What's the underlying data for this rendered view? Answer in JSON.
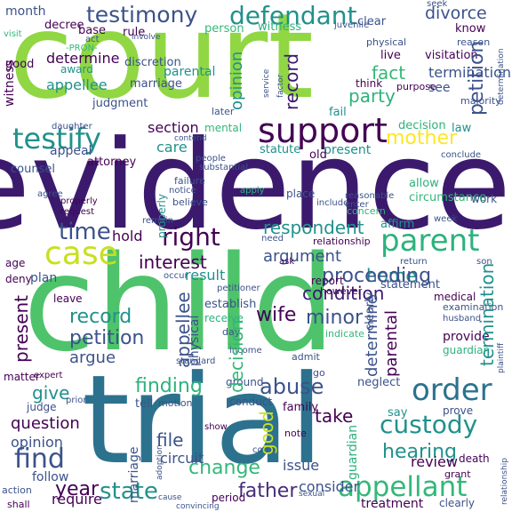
{
  "palette": {
    "background": "#ffffff",
    "dark_purple": "#440154",
    "indigo": "#3b528b",
    "blue": "#31688e",
    "teal": "#21918c",
    "green": "#35b779",
    "lime": "#90d743",
    "yellow": "#fde725"
  },
  "words": [
    "court",
    "evidence",
    "child",
    "trial",
    "support",
    "testify",
    "testimony",
    "defendant",
    "divorce",
    "case",
    "parent",
    "right",
    "time",
    "order",
    "custody",
    "appellant",
    "find",
    "finding",
    "abuse",
    "hearing",
    "father",
    "state",
    "year",
    "mother",
    "respondent",
    "interest",
    "home",
    "wife",
    "minor",
    "fact",
    "party",
    "record",
    "petition",
    "argue",
    "give",
    "question",
    "opinion",
    "file",
    "change",
    "circuit",
    "review",
    "proceeding",
    "condition",
    "argument",
    "result",
    "hold",
    "care",
    "section",
    "appeal",
    "present",
    "law",
    "decision",
    "appellee",
    "determine",
    "parental",
    "termination",
    "see",
    "live",
    "visitation",
    "statement",
    "affirm",
    "allow",
    "circumstance",
    "take",
    "tell",
    "issue",
    "consider",
    "require",
    "follow",
    "say",
    "family",
    "provide",
    "good",
    "month",
    "decree",
    "base",
    "rule",
    "discretion",
    "marriage",
    "judgment",
    "clear",
    "know",
    "physical",
    "witness",
    "person",
    "award",
    "counsel",
    "attorney",
    "mental",
    "statute",
    "old",
    "place",
    "age",
    "deny",
    "leave",
    "plan",
    "establish",
    "receive",
    "report",
    "however",
    "day",
    "admit",
    "neglect",
    "go",
    "prove",
    "ground",
    "matter",
    "expert",
    "judge",
    "prior",
    "motion",
    "conduct",
    "note",
    "grant",
    "period",
    "action",
    "shall",
    "treatment",
    "clearly",
    "medical",
    "examination",
    "husband",
    "guardian",
    "work",
    "death",
    "purpose",
    "fail",
    "later",
    "majority",
    "think",
    "juvenile",
    "reason",
    "seek",
    "visit",
    "daughter",
    "concern",
    "reasonable",
    "enter",
    "notice",
    "believe",
    "apply",
    "include",
    "ask",
    "relationship",
    "need",
    "return",
    "son",
    "week",
    "conclude",
    "contend",
    "occur",
    "petitioner",
    "income",
    "standard",
    "indicate",
    "show",
    "come",
    "sexual",
    "cause",
    "convincing",
    "act",
    "-PRON-",
    "agree",
    "properly",
    "request",
    "failure",
    "people",
    "substantial",
    "remain",
    "involve",
    "injury",
    "when",
    "drug",
    "proof",
    "appear",
    "alleged",
    "allege",
    "plaintiff",
    "adoption",
    "because",
    "consent",
    "continue",
    "factor",
    "service",
    "life",
    "there",
    "best",
    "determination",
    "conclusion",
    "err",
    "have",
    "hear",
    "accept",
    "claim",
    "bay",
    "term"
  ]
}
